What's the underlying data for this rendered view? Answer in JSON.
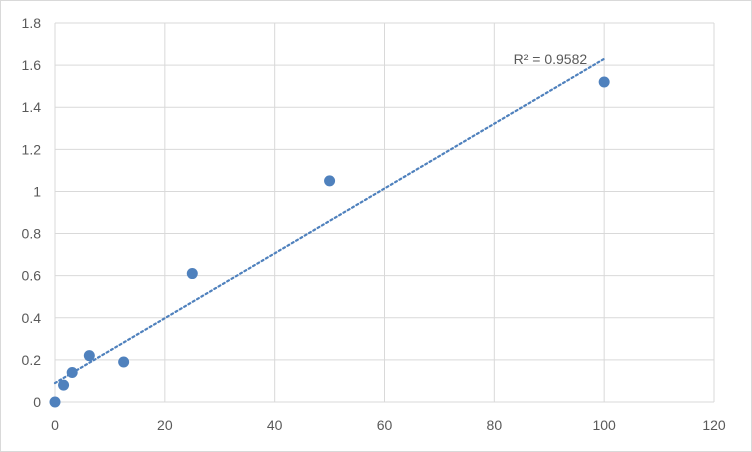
{
  "chart_data": {
    "type": "scatter",
    "title": "",
    "xlabel": "",
    "ylabel": "",
    "xlim": [
      0,
      120
    ],
    "ylim": [
      0,
      1.8
    ],
    "x_ticks": [
      "0",
      "20",
      "40",
      "60",
      "80",
      "100",
      "120"
    ],
    "y_ticks": [
      "0",
      "0.2",
      "0.4",
      "0.6",
      "0.8",
      "1",
      "1.2",
      "1.4",
      "1.6",
      "1.8"
    ],
    "grid": true,
    "legend": "none",
    "series": [
      {
        "x": [
          0,
          1.56,
          3.13,
          6.25,
          12.5,
          25,
          50,
          100
        ],
        "y": [
          0,
          0.08,
          0.14,
          0.22,
          0.19,
          0.61,
          1.05,
          1.52
        ],
        "color": "#4f81bd"
      }
    ],
    "trendline": {
      "type": "linear",
      "style": "dotted",
      "color": "#4f81bd",
      "x_range": [
        0,
        100
      ],
      "y_range": [
        0.09,
        1.63
      ],
      "label": "R² = 0.9582"
    }
  }
}
